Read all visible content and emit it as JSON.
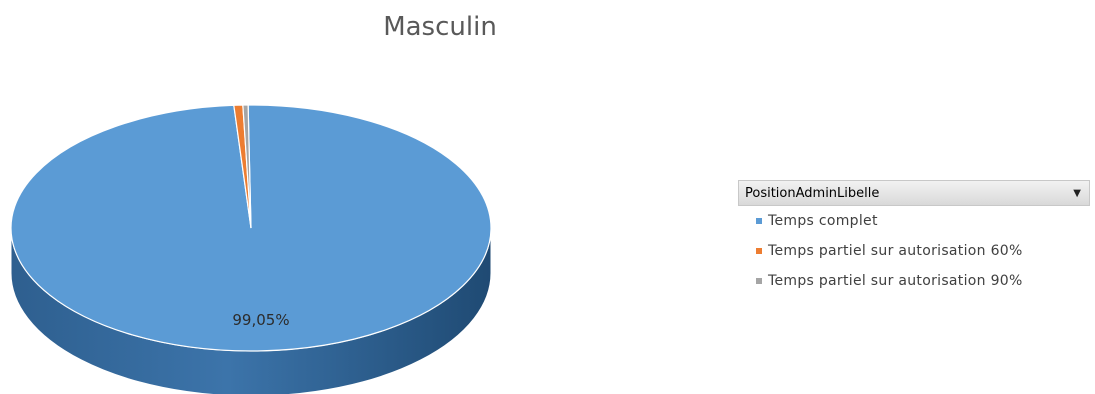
{
  "chart_data": {
    "type": "pie",
    "title": "Masculin",
    "style": "3d",
    "data_label": "99,05%",
    "slices": [
      {
        "label": "Temps complet",
        "value": 99.05,
        "color": "#5b9bd5"
      },
      {
        "label": "Temps partiel sur autorisation 60%",
        "value": 0.6,
        "color": "#ed7d31"
      },
      {
        "label": "Temps partiel sur autorisation 90%",
        "value": 0.35,
        "color": "#a5a5a5"
      }
    ]
  },
  "legend": {
    "field_name": "PositionAdminLibelle",
    "dropdown_icon": "caret-down-icon",
    "placement": "right"
  }
}
